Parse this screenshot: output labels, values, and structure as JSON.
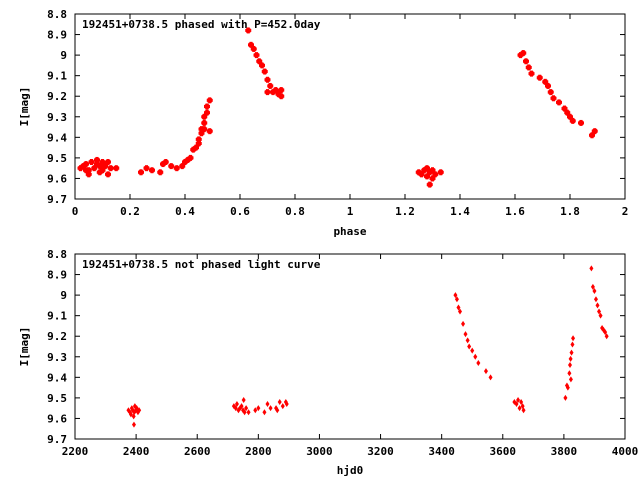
{
  "chart_data": [
    {
      "type": "scatter",
      "title": "192451+0738.5 phased with P=452.0day",
      "xlabel": "phase",
      "ylabel": "I[mag]",
      "xlim": [
        0,
        2
      ],
      "ylim": [
        8.8,
        9.7
      ],
      "y_inverted": true,
      "xticks": [
        "0",
        "0.2",
        "0.4",
        "0.6",
        "0.8",
        "1",
        "1.2",
        "1.4",
        "1.6",
        "1.8",
        "2"
      ],
      "yticks": [
        "8.8",
        "8.9",
        "9",
        "9.1",
        "9.2",
        "9.3",
        "9.4",
        "9.5",
        "9.6",
        "9.7"
      ],
      "grid": false,
      "marker_color": "#ff0000",
      "marker": "plus",
      "series": [
        {
          "points": [
            [
              0.02,
              9.55
            ],
            [
              0.03,
              9.54
            ],
            [
              0.04,
              9.53
            ],
            [
              0.05,
              9.56
            ],
            [
              0.06,
              9.52
            ],
            [
              0.07,
              9.55
            ],
            [
              0.08,
              9.51
            ],
            [
              0.09,
              9.54
            ],
            [
              0.1,
              9.52
            ],
            [
              0.1,
              9.56
            ],
            [
              0.11,
              9.54
            ],
            [
              0.12,
              9.52
            ],
            [
              0.13,
              9.55
            ],
            [
              0.15,
              9.55
            ],
            [
              0.05,
              9.58
            ],
            [
              0.09,
              9.57
            ],
            [
              0.12,
              9.58
            ],
            [
              0.08,
              9.53
            ],
            [
              0.04,
              9.56
            ],
            [
              0.24,
              9.57
            ],
            [
              0.26,
              9.55
            ],
            [
              0.28,
              9.56
            ],
            [
              0.31,
              9.57
            ],
            [
              0.32,
              9.53
            ],
            [
              0.33,
              9.52
            ],
            [
              0.35,
              9.54
            ],
            [
              0.37,
              9.55
            ],
            [
              0.39,
              9.54
            ],
            [
              0.4,
              9.52
            ],
            [
              0.41,
              9.51
            ],
            [
              0.42,
              9.5
            ],
            [
              0.43,
              9.46
            ],
            [
              0.44,
              9.45
            ],
            [
              0.45,
              9.43
            ],
            [
              0.45,
              9.41
            ],
            [
              0.46,
              9.38
            ],
            [
              0.46,
              9.36
            ],
            [
              0.47,
              9.33
            ],
            [
              0.47,
              9.3
            ],
            [
              0.48,
              9.28
            ],
            [
              0.48,
              9.25
            ],
            [
              0.49,
              9.22
            ],
            [
              0.49,
              9.37
            ],
            [
              0.47,
              9.36
            ],
            [
              0.63,
              8.88
            ],
            [
              0.64,
              8.95
            ],
            [
              0.65,
              8.97
            ],
            [
              0.66,
              9.0
            ],
            [
              0.67,
              9.03
            ],
            [
              0.68,
              9.05
            ],
            [
              0.69,
              9.08
            ],
            [
              0.7,
              9.12
            ],
            [
              0.71,
              9.15
            ],
            [
              0.72,
              9.18
            ],
            [
              0.73,
              9.17
            ],
            [
              0.74,
              9.19
            ],
            [
              0.75,
              9.2
            ],
            [
              0.75,
              9.17
            ],
            [
              0.7,
              9.18
            ],
            [
              1.25,
              9.57
            ],
            [
              1.26,
              9.58
            ],
            [
              1.27,
              9.56
            ],
            [
              1.28,
              9.55
            ],
            [
              1.28,
              9.59
            ],
            [
              1.29,
              9.57
            ],
            [
              1.3,
              9.56
            ],
            [
              1.3,
              9.6
            ],
            [
              1.31,
              9.58
            ],
            [
              1.33,
              9.57
            ],
            [
              1.29,
              9.63
            ],
            [
              1.62,
              9.0
            ],
            [
              1.63,
              8.99
            ],
            [
              1.64,
              9.03
            ],
            [
              1.65,
              9.06
            ],
            [
              1.66,
              9.09
            ],
            [
              1.69,
              9.11
            ],
            [
              1.71,
              9.13
            ],
            [
              1.72,
              9.15
            ],
            [
              1.73,
              9.18
            ],
            [
              1.74,
              9.21
            ],
            [
              1.76,
              9.23
            ],
            [
              1.78,
              9.26
            ],
            [
              1.79,
              9.28
            ],
            [
              1.8,
              9.3
            ],
            [
              1.81,
              9.32
            ],
            [
              1.84,
              9.33
            ],
            [
              1.88,
              9.39
            ],
            [
              1.89,
              9.37
            ]
          ]
        }
      ]
    },
    {
      "type": "scatter",
      "title": "192451+0738.5 not phased light curve",
      "xlabel": "hjd0",
      "ylabel": "I[mag]",
      "xlim": [
        2200,
        4000
      ],
      "ylim": [
        8.8,
        9.7
      ],
      "y_inverted": true,
      "xticks": [
        "2200",
        "2400",
        "2600",
        "2800",
        "3000",
        "3200",
        "3400",
        "3600",
        "3800",
        "4000"
      ],
      "yticks": [
        "8.8",
        "8.9",
        "9",
        "9.1",
        "9.2",
        "9.3",
        "9.4",
        "9.5",
        "9.6",
        "9.7"
      ],
      "grid": false,
      "marker_color": "#ff0000",
      "marker": "diamond",
      "series": [
        {
          "points": [
            [
              2375,
              9.56
            ],
            [
              2380,
              9.57
            ],
            [
              2383,
              9.58
            ],
            [
              2386,
              9.55
            ],
            [
              2389,
              9.56
            ],
            [
              2392,
              9.59
            ],
            [
              2394,
              9.57
            ],
            [
              2396,
              9.54
            ],
            [
              2399,
              9.56
            ],
            [
              2402,
              9.55
            ],
            [
              2406,
              9.57
            ],
            [
              2410,
              9.56
            ],
            [
              2393,
              9.63
            ],
            [
              2720,
              9.54
            ],
            [
              2726,
              9.55
            ],
            [
              2730,
              9.53
            ],
            [
              2735,
              9.56
            ],
            [
              2740,
              9.55
            ],
            [
              2745,
              9.54
            ],
            [
              2750,
              9.56
            ],
            [
              2755,
              9.57
            ],
            [
              2760,
              9.55
            ],
            [
              2752,
              9.51
            ],
            [
              2768,
              9.57
            ],
            [
              2790,
              9.56
            ],
            [
              2800,
              9.55
            ],
            [
              2820,
              9.57
            ],
            [
              2830,
              9.53
            ],
            [
              2840,
              9.55
            ],
            [
              2858,
              9.55
            ],
            [
              2862,
              9.56
            ],
            [
              2870,
              9.52
            ],
            [
              2880,
              9.54
            ],
            [
              2890,
              9.52
            ],
            [
              2893,
              9.53
            ],
            [
              3445,
              9.0
            ],
            [
              3450,
              9.02
            ],
            [
              3455,
              9.06
            ],
            [
              3460,
              9.08
            ],
            [
              3470,
              9.14
            ],
            [
              3478,
              9.19
            ],
            [
              3485,
              9.22
            ],
            [
              3490,
              9.25
            ],
            [
              3500,
              9.27
            ],
            [
              3510,
              9.3
            ],
            [
              3520,
              9.33
            ],
            [
              3545,
              9.37
            ],
            [
              3560,
              9.4
            ],
            [
              3638,
              9.52
            ],
            [
              3645,
              9.53
            ],
            [
              3650,
              9.51
            ],
            [
              3655,
              9.55
            ],
            [
              3660,
              9.52
            ],
            [
              3665,
              9.54
            ],
            [
              3668,
              9.56
            ],
            [
              3805,
              9.5
            ],
            [
              3810,
              9.44
            ],
            [
              3813,
              9.45
            ],
            [
              3818,
              9.38
            ],
            [
              3820,
              9.34
            ],
            [
              3822,
              9.31
            ],
            [
              3825,
              9.28
            ],
            [
              3828,
              9.24
            ],
            [
              3830,
              9.21
            ],
            [
              3823,
              9.41
            ],
            [
              3890,
              8.87
            ],
            [
              3895,
              8.96
            ],
            [
              3900,
              8.98
            ],
            [
              3905,
              9.02
            ],
            [
              3910,
              9.05
            ],
            [
              3915,
              9.08
            ],
            [
              3920,
              9.1
            ],
            [
              3925,
              9.16
            ],
            [
              3930,
              9.17
            ],
            [
              3935,
              9.18
            ],
            [
              3940,
              9.2
            ]
          ]
        }
      ]
    }
  ]
}
